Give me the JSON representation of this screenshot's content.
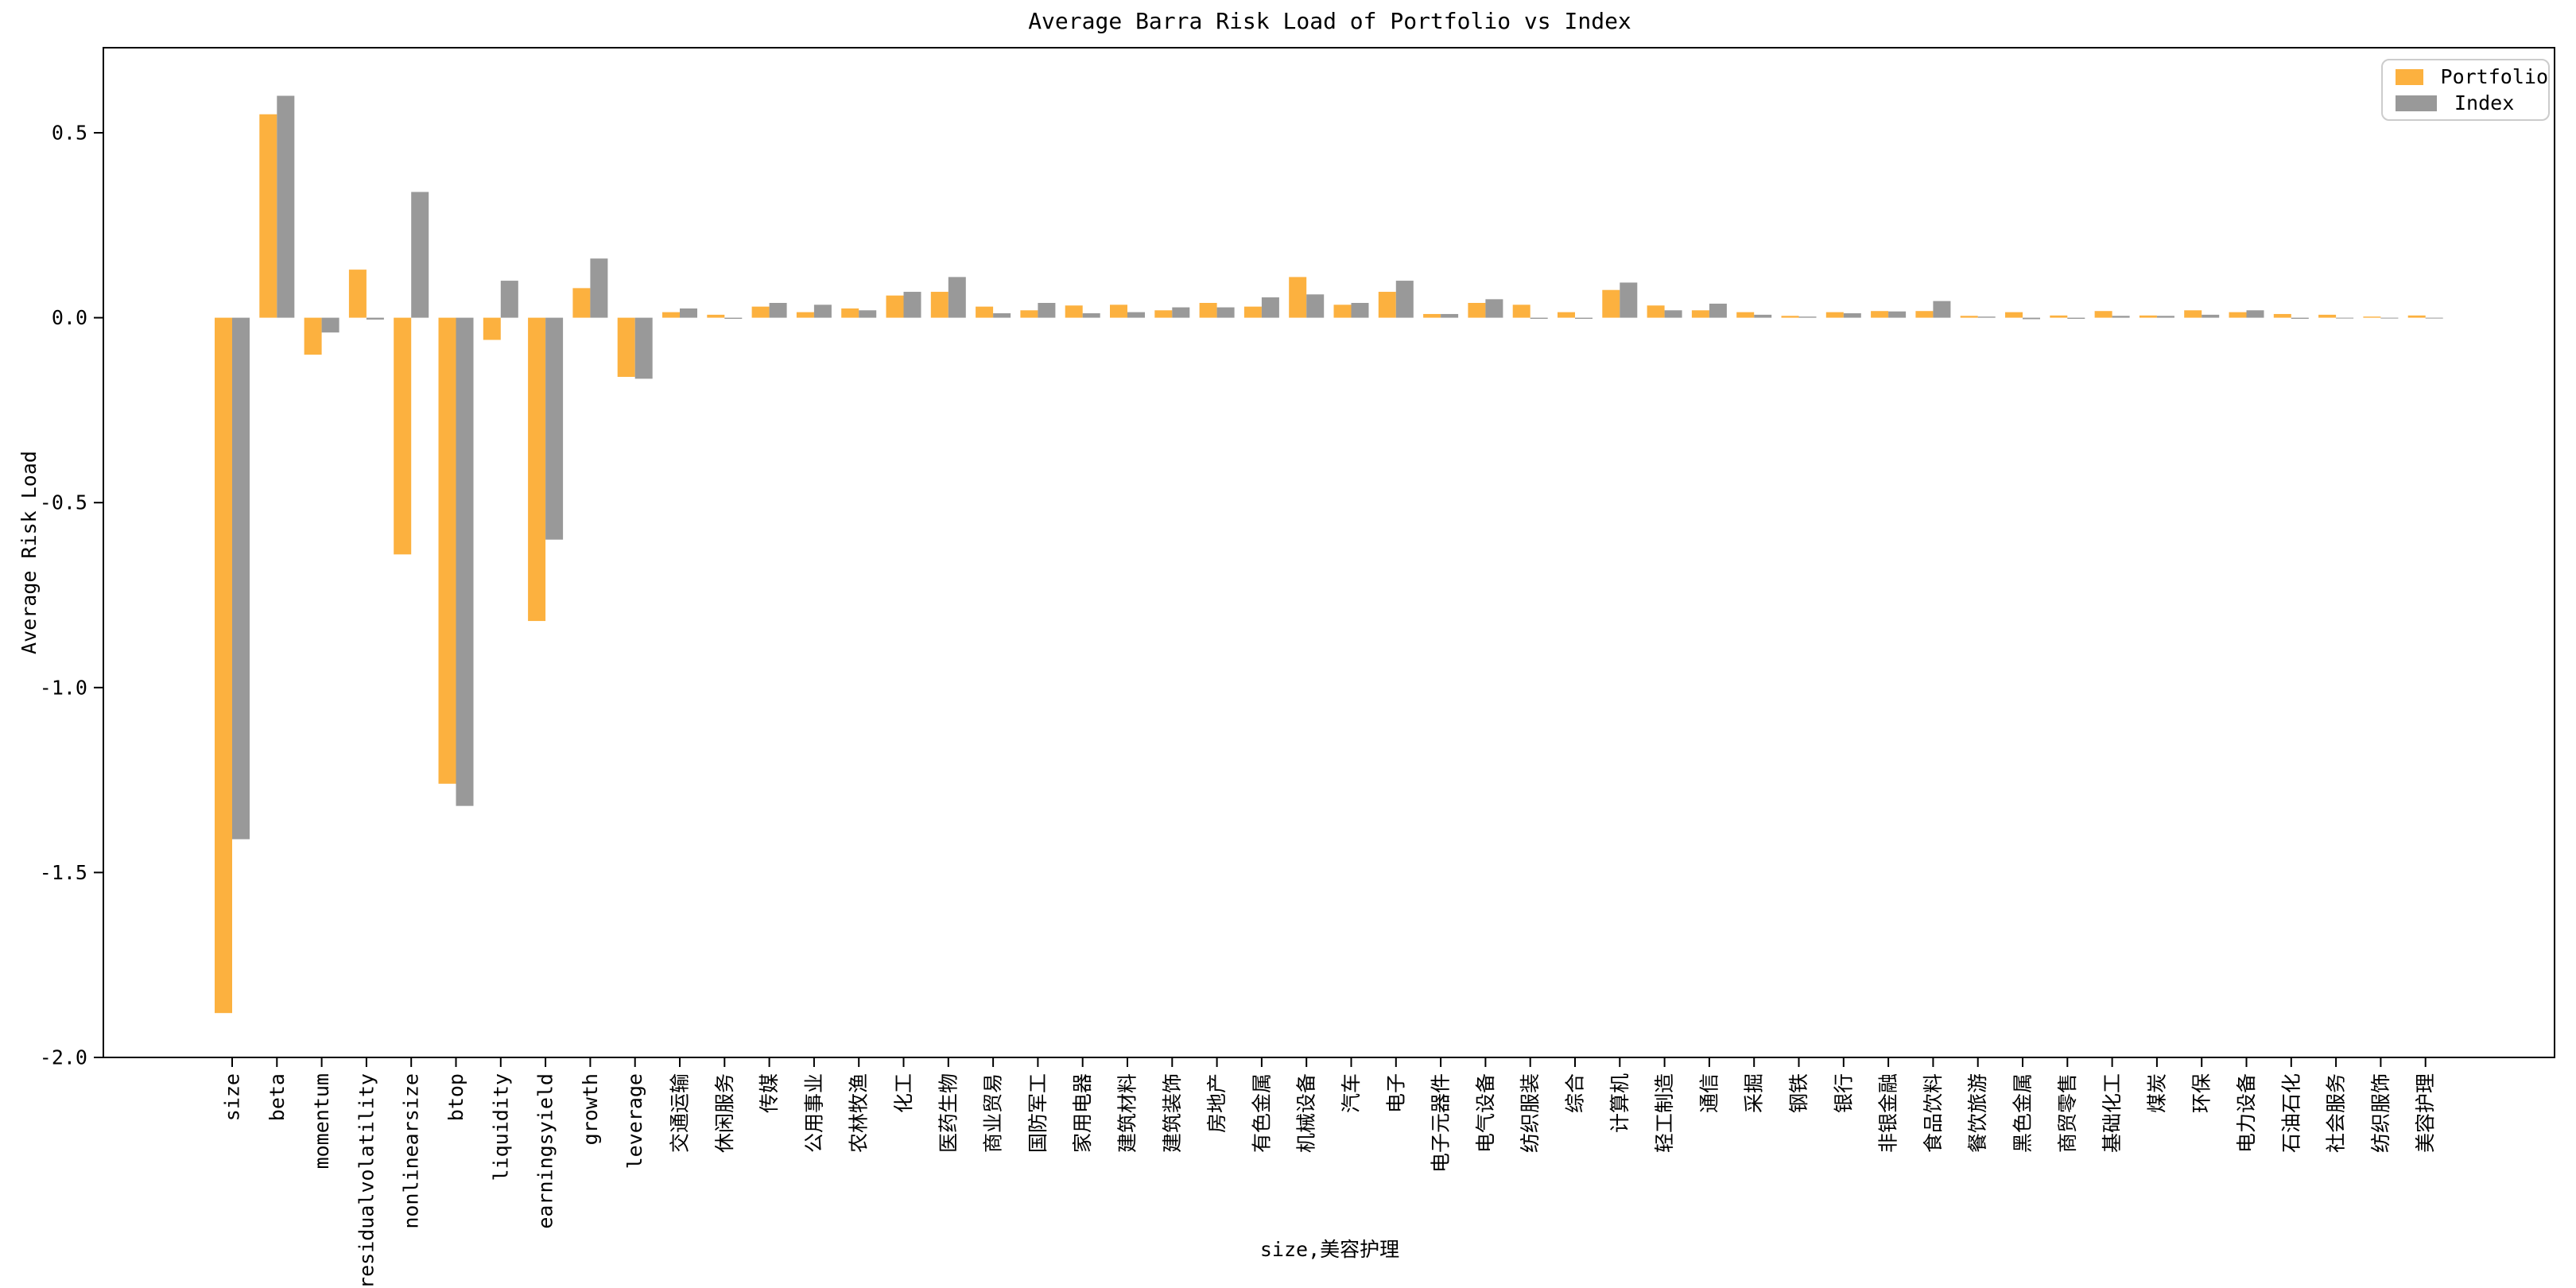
{
  "title": "Average Barra Risk Load of Portfolio vs Index",
  "xlabel": "size,美容护理",
  "ylabel": "Average Risk Load",
  "legend": {
    "position": "upper right",
    "items": [
      {
        "label": "Portfolio",
        "color": "#FCB13F"
      },
      {
        "label": "Index",
        "color": "#999999"
      }
    ]
  },
  "colors": {
    "portfolio": "#FCB13F",
    "index": "#999999",
    "axis": "#000000",
    "legend_border": "#cccccc",
    "background": "#ffffff"
  },
  "chart_data": {
    "type": "bar",
    "title": "Average Barra Risk Load of Portfolio vs Index",
    "xlabel": "size,美容护理",
    "ylabel": "Average Risk Load",
    "grid": false,
    "legend_position": "upper right",
    "ylim": [
      -2.0,
      0.73
    ],
    "yticks": [
      0.5,
      0.0,
      -0.5,
      -1.0,
      -1.5,
      -2.0
    ],
    "ytick_labels": [
      "0.5",
      "0.0",
      "-0.5",
      "-1.0",
      "-1.5",
      "-2.0"
    ],
    "categories": [
      "size",
      "beta",
      "momentum",
      "residualvolatility",
      "nonlinearsize",
      "btop",
      "liquidity",
      "earningsyield",
      "growth",
      "leverage",
      "交通运输",
      "休闲服务",
      "传媒",
      "公用事业",
      "农林牧渔",
      "化工",
      "医药生物",
      "商业贸易",
      "国防军工",
      "家用电器",
      "建筑材料",
      "建筑装饰",
      "房地产",
      "有色金属",
      "机械设备",
      "汽车",
      "电子",
      "电子元器件",
      "电气设备",
      "纺织服装",
      "综合",
      "计算机",
      "轻工制造",
      "通信",
      "采掘",
      "钢铁",
      "银行",
      "非银金融",
      "食品饮料",
      "餐饮旅游",
      "黑色金属",
      "商贸零售",
      "基础化工",
      "煤炭",
      "环保",
      "电力设备",
      "石油石化",
      "社会服务",
      "纺织服饰",
      "美容护理"
    ],
    "series": [
      {
        "name": "Portfolio",
        "color": "#FCB13F",
        "values": [
          -1.88,
          0.55,
          -0.1,
          0.13,
          -0.64,
          -1.26,
          -0.06,
          -0.82,
          0.08,
          -0.16,
          0.015,
          0.008,
          0.03,
          0.015,
          0.025,
          0.06,
          0.07,
          0.03,
          0.02,
          0.033,
          0.035,
          0.02,
          0.04,
          0.03,
          0.11,
          0.035,
          0.07,
          0.01,
          0.04,
          0.035,
          0.015,
          0.075,
          0.033,
          0.02,
          0.015,
          0.005,
          0.015,
          0.018,
          0.018,
          0.005,
          0.015,
          0.006,
          0.018,
          0.006,
          0.02,
          0.015,
          0.01,
          0.008,
          0.003,
          0.006
        ]
      },
      {
        "name": "Index",
        "color": "#999999",
        "values": [
          -1.41,
          0.6,
          -0.04,
          -0.005,
          0.34,
          -1.32,
          0.1,
          -0.6,
          0.16,
          -0.165,
          0.025,
          -0.003,
          0.04,
          0.035,
          0.02,
          0.07,
          0.11,
          0.012,
          0.04,
          0.012,
          0.015,
          0.028,
          0.028,
          0.055,
          0.063,
          0.04,
          0.1,
          0.01,
          0.05,
          -0.003,
          -0.003,
          0.095,
          0.02,
          0.038,
          0.008,
          0.003,
          0.012,
          0.017,
          0.045,
          0.003,
          -0.004,
          -0.003,
          0.005,
          0.005,
          0.008,
          0.02,
          -0.003,
          -0.002,
          -0.001,
          -0.002
        ]
      }
    ]
  }
}
